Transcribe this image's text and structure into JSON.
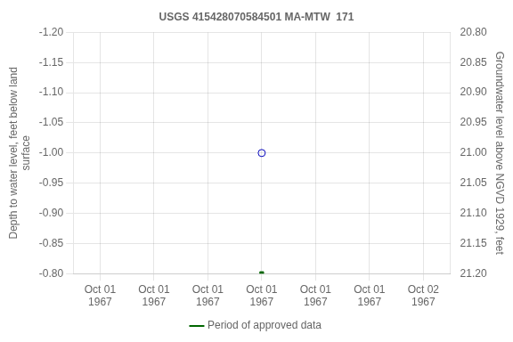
{
  "chart_data": {
    "type": "scatter",
    "title": "USGS 415428070584501 MA-MTW  171",
    "ylabel": "Depth to water level, feet below land\nsurface",
    "y2label": "Groundwater level above NGVD 1929, feet",
    "categories": [
      "Oct 01\n1967",
      "Oct 01\n1967",
      "Oct 01\n1967",
      "Oct 01\n1967",
      "Oct 01\n1967",
      "Oct 01\n1967",
      "Oct 02\n1967"
    ],
    "series": [
      {
        "color": "#0000bb",
        "marker": "open_circle",
        "values": [
          null,
          null,
          null,
          -1.0,
          null,
          null,
          null
        ]
      },
      {
        "name": "Period of approved data",
        "color": "#006600",
        "marker": "square",
        "values": [
          null,
          null,
          null,
          -0.8,
          null,
          null,
          null
        ]
      }
    ],
    "ylim": [
      -0.8,
      -1.2
    ],
    "yticks": [
      {
        "value": -1.2,
        "label": "-1.20"
      },
      -1.15,
      {
        "value": -1.1,
        "label": "-1.10"
      },
      -1.05,
      {
        "value": -1.0,
        "label": "-1.00"
      },
      -0.95,
      {
        "value": -0.9,
        "label": "-0.90"
      },
      -0.85,
      {
        "value": -0.8,
        "label": "-0.80"
      }
    ],
    "y2lim": [
      21.2,
      20.8
    ],
    "y2ticks": [
      {
        "value": 20.8,
        "label": "20.80"
      },
      20.85,
      {
        "value": 20.9,
        "label": "20.90"
      },
      20.95,
      {
        "value": 21.0,
        "label": "21.00"
      },
      21.05,
      {
        "value": 21.1,
        "label": "21.10"
      },
      21.15,
      {
        "value": 21.2,
        "label": "21.20"
      }
    ],
    "grid": true,
    "legend": "bottom"
  }
}
